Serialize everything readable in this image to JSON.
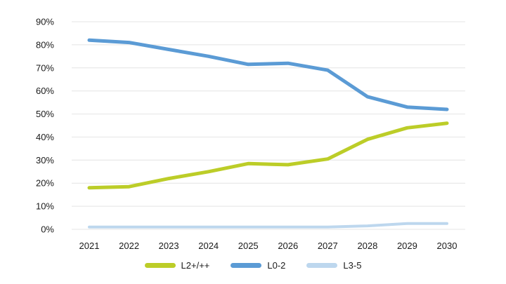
{
  "chart_data": {
    "type": "line",
    "title": "",
    "xlabel": "",
    "ylabel": "",
    "categories": [
      "2021",
      "2022",
      "2023",
      "2024",
      "2025",
      "2026",
      "2027",
      "2028",
      "2029",
      "2030"
    ],
    "ytick_labels": [
      "0%",
      "10%",
      "20%",
      "30%",
      "40%",
      "50%",
      "60%",
      "70%",
      "80%",
      "90%"
    ],
    "ytick_step": 10,
    "ylim": [
      0,
      90
    ],
    "grid": "horizontal-only",
    "gridline_color": "#e4e4e4",
    "legend_position": "bottom",
    "series": [
      {
        "id": "l2-plus",
        "name": "L2+/++",
        "color": "#bccd28",
        "width": 5,
        "values": [
          18,
          18.5,
          22,
          25,
          28.5,
          28,
          30.5,
          39,
          44,
          46
        ]
      },
      {
        "id": "l0-2",
        "name": "L0-2",
        "color": "#5b9bd5",
        "width": 5,
        "values": [
          82,
          81,
          78,
          75,
          71.5,
          72,
          69,
          57.5,
          53,
          52
        ]
      },
      {
        "id": "l3-5",
        "name": "L3-5",
        "color": "#bdd7ee",
        "width": 4,
        "values": [
          1,
          1,
          1,
          1,
          1,
          1,
          1,
          1.5,
          2.5,
          2.5
        ]
      }
    ]
  }
}
